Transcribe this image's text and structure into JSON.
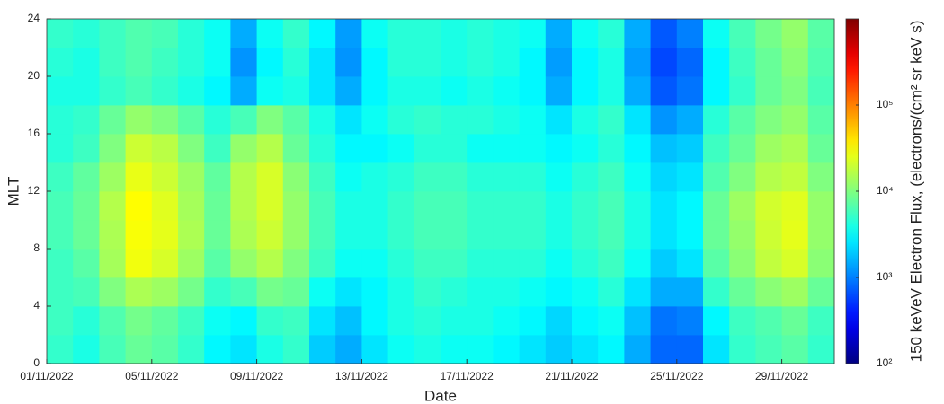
{
  "chart_data": {
    "type": "heatmap",
    "xlabel": "Date",
    "ylabel": "MLT",
    "colorbar_label": "150 keVeV Electron Flux, (electrons/(cm² sr keV s)",
    "colormap": "jet",
    "color_scale": "log",
    "clim": [
      100,
      1000000
    ],
    "cticks": [
      {
        "value": 100,
        "label": "10²"
      },
      {
        "value": 1000,
        "label": "10³"
      },
      {
        "value": 10000,
        "label": "10⁴"
      },
      {
        "value": 100000,
        "label": "10⁵"
      }
    ],
    "xlim": [
      "2022-11-01",
      "2022-12-01"
    ],
    "xticks": [
      {
        "value": "2022-11-01",
        "label": "01/11/2022"
      },
      {
        "value": "2022-11-05",
        "label": "05/11/2022"
      },
      {
        "value": "2022-11-09",
        "label": "09/11/2022"
      },
      {
        "value": "2022-11-13",
        "label": "13/11/2022"
      },
      {
        "value": "2022-11-17",
        "label": "17/11/2022"
      },
      {
        "value": "2022-11-21",
        "label": "21/11/2022"
      },
      {
        "value": "2022-11-25",
        "label": "25/11/2022"
      },
      {
        "value": "2022-11-29",
        "label": "29/11/2022"
      }
    ],
    "ylim": [
      0,
      24
    ],
    "yticks": [
      0,
      4,
      8,
      12,
      16,
      20,
      24
    ],
    "x": [
      "2022-11-01",
      "2022-11-02",
      "2022-11-03",
      "2022-11-04",
      "2022-11-05",
      "2022-11-06",
      "2022-11-07",
      "2022-11-08",
      "2022-11-09",
      "2022-11-10",
      "2022-11-11",
      "2022-11-12",
      "2022-11-13",
      "2022-11-14",
      "2022-11-15",
      "2022-11-16",
      "2022-11-17",
      "2022-11-18",
      "2022-11-19",
      "2022-11-20",
      "2022-11-21",
      "2022-11-22",
      "2022-11-23",
      "2022-11-24",
      "2022-11-25",
      "2022-11-26",
      "2022-11-27",
      "2022-11-28",
      "2022-11-29",
      "2022-11-30"
    ],
    "y_bins": [
      0,
      2,
      4,
      6,
      8,
      10,
      12,
      14,
      16,
      18,
      20,
      22,
      24
    ],
    "z": [
      [
        5000,
        4000,
        6000,
        8000,
        7000,
        5000,
        3000,
        2500,
        4000,
        5000,
        2000,
        1500,
        2500,
        3500,
        4000,
        3500,
        3500,
        3000,
        2500,
        2000,
        2500,
        3000,
        1500,
        800,
        800,
        2500,
        5000,
        6000,
        7000,
        5000
      ],
      [
        5500,
        4500,
        6500,
        9000,
        7500,
        5500,
        3500,
        3000,
        5000,
        5500,
        2500,
        1800,
        3000,
        4000,
        4500,
        4000,
        4000,
        3500,
        3000,
        2200,
        3000,
        3500,
        1800,
        900,
        1000,
        3000,
        5500,
        6500,
        8000,
        5500
      ],
      [
        5500,
        6000,
        10000,
        15000,
        13000,
        9000,
        5000,
        6000,
        9000,
        8000,
        3500,
        2500,
        3000,
        4000,
        5000,
        4500,
        4000,
        4000,
        3500,
        3000,
        3500,
        4500,
        2500,
        1500,
        1500,
        5000,
        8000,
        11000,
        13000,
        8000
      ],
      [
        5500,
        7000,
        14000,
        28000,
        22000,
        13000,
        7000,
        12000,
        16000,
        10000,
        5500,
        3500,
        3500,
        4500,
        5500,
        5500,
        4500,
        4500,
        4500,
        3500,
        4500,
        5500,
        3500,
        2000,
        2500,
        7000,
        11000,
        18000,
        22000,
        11000
      ],
      [
        6000,
        8000,
        15000,
        30000,
        25000,
        15000,
        8000,
        15000,
        20000,
        12000,
        6000,
        4000,
        4000,
        5000,
        6000,
        6000,
        5000,
        5000,
        5000,
        4000,
        5000,
        6000,
        4000,
        2500,
        3000,
        8000,
        12000,
        20000,
        25000,
        12000
      ],
      [
        6000,
        8000,
        16000,
        32000,
        24000,
        14000,
        8000,
        16000,
        22000,
        12000,
        6000,
        4000,
        4000,
        5000,
        6000,
        6000,
        5000,
        5000,
        5000,
        4000,
        5000,
        6000,
        4000,
        2500,
        3000,
        8000,
        13000,
        21000,
        24000,
        12000
      ],
      [
        5500,
        7500,
        13000,
        26000,
        20000,
        13000,
        7500,
        16000,
        22000,
        11000,
        5500,
        3500,
        4000,
        4500,
        5500,
        5500,
        4500,
        4500,
        4500,
        3500,
        4500,
        5500,
        3500,
        2200,
        2500,
        6500,
        10000,
        16000,
        18000,
        10000
      ],
      [
        4500,
        5500,
        10000,
        20000,
        17000,
        10000,
        5500,
        12000,
        16000,
        8000,
        4500,
        3000,
        3000,
        3500,
        4500,
        4500,
        3500,
        3500,
        3500,
        3000,
        3500,
        4500,
        3000,
        1800,
        2000,
        5500,
        8000,
        13000,
        15000,
        8000
      ],
      [
        4500,
        5000,
        8000,
        12000,
        10000,
        7000,
        4500,
        6000,
        10000,
        7000,
        4000,
        2500,
        3500,
        4500,
        5000,
        4500,
        4500,
        4000,
        3500,
        2500,
        4000,
        5000,
        2500,
        1200,
        1500,
        4500,
        7000,
        10000,
        12000,
        7000
      ],
      [
        4000,
        4000,
        5000,
        6000,
        5000,
        4000,
        3000,
        1500,
        3500,
        4000,
        2500,
        1500,
        3000,
        4000,
        4000,
        3500,
        4000,
        3500,
        3000,
        1500,
        3000,
        4000,
        1500,
        700,
        900,
        3000,
        5000,
        8000,
        10000,
        6000
      ],
      [
        4500,
        4000,
        5500,
        6500,
        5500,
        4500,
        3500,
        1200,
        3000,
        4500,
        2500,
        1200,
        3000,
        4500,
        4500,
        4000,
        4500,
        4000,
        3000,
        1300,
        3000,
        4000,
        1300,
        600,
        800,
        3000,
        5500,
        8000,
        11000,
        6500
      ],
      [
        5000,
        4500,
        5500,
        6500,
        6000,
        4500,
        3500,
        1500,
        3500,
        5000,
        3000,
        1300,
        3500,
        4500,
        4500,
        4000,
        4500,
        4000,
        3500,
        1500,
        3500,
        4500,
        1500,
        700,
        1000,
        3500,
        6000,
        9000,
        12000,
        7000
      ]
    ]
  }
}
